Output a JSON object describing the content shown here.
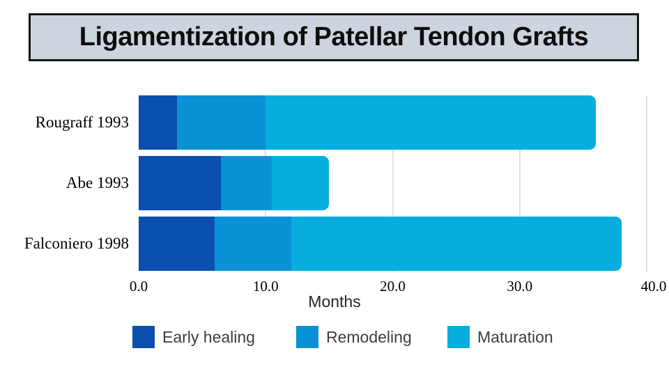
{
  "title": "Ligamentization of Patellar Tendon Grafts",
  "chart_data": {
    "type": "bar",
    "orientation": "horizontal",
    "stacked": true,
    "title": "Ligamentization of Patellar Tendon Grafts",
    "categories": [
      "Rougraff 1993",
      "Abe 1993",
      "Falconiero 1998"
    ],
    "series": [
      {
        "name": "Early healing",
        "color": "#0b4fae",
        "values": [
          3,
          6.5,
          6
        ]
      },
      {
        "name": "Remodeling",
        "color": "#0991d5",
        "values": [
          7,
          4,
          6
        ]
      },
      {
        "name": "Maturation",
        "color": "#06addd",
        "values": [
          26,
          4.5,
          26
        ]
      }
    ],
    "totals_months": [
      36,
      15,
      38
    ],
    "xlabel": "Months",
    "xticks": [
      "0.0",
      "10.0",
      "20.0",
      "30.0",
      "40.0"
    ],
    "xtick_values": [
      0,
      10,
      20,
      30,
      40
    ],
    "xlim": [
      0,
      40
    ],
    "grid": "vertical",
    "gridline_color": "#e0e0e0",
    "legend_position": "bottom"
  },
  "style": {
    "title_box_bg": "#ccd4dd",
    "title_box_border": "#161616",
    "legend_text_color": "#3d3d3d"
  }
}
